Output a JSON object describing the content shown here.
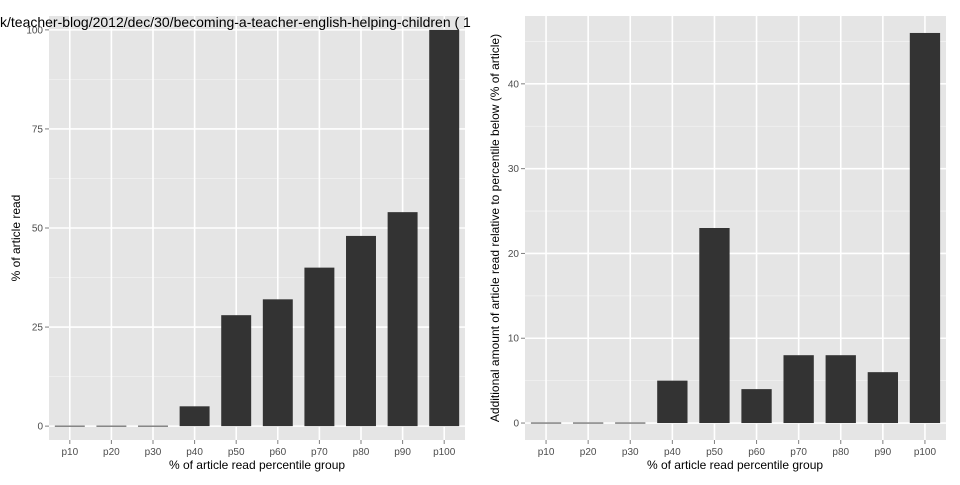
{
  "chart_data": [
    {
      "type": "bar",
      "title": "k/teacher-blog/2012/dec/30/becoming-a-teacher-english-helping-children ( 1",
      "xlabel": "% of article read percentile group",
      "ylabel": "% of article read",
      "categories": [
        "p10",
        "p20",
        "p30",
        "p40",
        "p50",
        "p60",
        "p70",
        "p80",
        "p90",
        "p100"
      ],
      "values": [
        0,
        0,
        0,
        5,
        28,
        32,
        40,
        48,
        54,
        100
      ],
      "ylim": [
        -3.5,
        103.5
      ],
      "yticks": [
        0,
        25,
        50,
        75,
        100
      ],
      "grid": true,
      "colors": {
        "bar": "#333333",
        "panel": "#e5e5e5",
        "grid": "#ffffff",
        "tick_text": "#4d4d4d"
      }
    },
    {
      "type": "bar",
      "title": "",
      "xlabel": "% of article read percentile group",
      "ylabel": "Additional amount of article read relative to percentile below (% of article)",
      "categories": [
        "p10",
        "p20",
        "p30",
        "p40",
        "p50",
        "p60",
        "p70",
        "p80",
        "p90",
        "p100"
      ],
      "values": [
        0,
        0,
        0,
        5,
        23,
        4,
        8,
        8,
        6,
        46
      ],
      "ylim": [
        -2,
        48
      ],
      "yticks": [
        0,
        10,
        20,
        30,
        40
      ],
      "grid": true,
      "colors": {
        "bar": "#333333",
        "panel": "#e5e5e5",
        "grid": "#ffffff",
        "tick_text": "#4d4d4d"
      }
    }
  ]
}
